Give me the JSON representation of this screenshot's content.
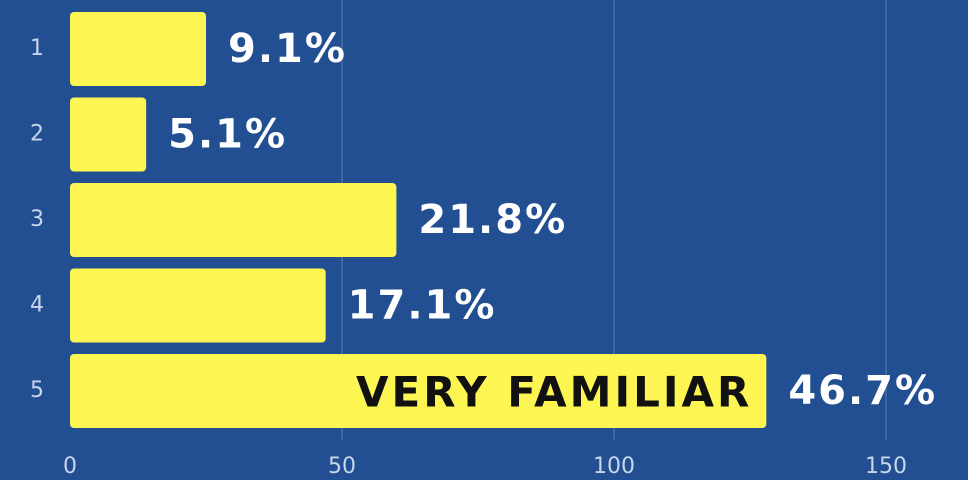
{
  "chart_data": {
    "type": "bar",
    "orientation": "horizontal",
    "categories": [
      "1",
      "2",
      "3",
      "4",
      "5"
    ],
    "values": [
      25,
      14,
      60,
      47,
      128
    ],
    "data_labels": [
      "9.1%",
      "5.1%",
      "21.8%",
      "17.1%",
      "46.7%"
    ],
    "color": "#fdf552",
    "xlim": [
      0,
      165
    ],
    "xticks": [
      0,
      50,
      100,
      150
    ],
    "grid": true,
    "annotations": [
      {
        "text": "VERY FAMILIAR",
        "category": 4
      }
    ]
  }
}
